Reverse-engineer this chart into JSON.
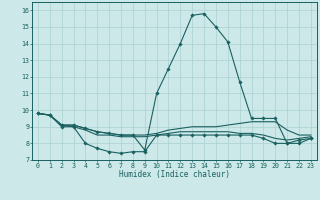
{
  "xlabel": "Humidex (Indice chaleur)",
  "xlim": [
    -0.5,
    23.5
  ],
  "ylim": [
    7,
    16.5
  ],
  "yticks": [
    7,
    8,
    9,
    10,
    11,
    12,
    13,
    14,
    15,
    16
  ],
  "xticks": [
    0,
    1,
    2,
    3,
    4,
    5,
    6,
    7,
    8,
    9,
    10,
    11,
    12,
    13,
    14,
    15,
    16,
    17,
    18,
    19,
    20,
    21,
    22,
    23
  ],
  "bg_color": "#cce8e8",
  "line_color": "#1a6060",
  "grid_color": "#aad0d0",
  "series": [
    {
      "x": [
        0,
        1,
        2,
        3,
        4,
        5,
        6,
        7,
        8,
        9,
        10,
        11,
        12,
        13,
        14,
        15,
        16,
        17,
        18,
        19,
        20,
        21,
        22,
        23
      ],
      "y": [
        9.8,
        9.7,
        9.0,
        9.0,
        8.0,
        7.7,
        7.5,
        7.4,
        7.5,
        7.5,
        8.5,
        8.5,
        8.5,
        8.5,
        8.5,
        8.5,
        8.5,
        8.5,
        8.5,
        8.3,
        8.0,
        8.0,
        8.2,
        8.3
      ],
      "marker": true
    },
    {
      "x": [
        0,
        1,
        2,
        3,
        4,
        5,
        6,
        7,
        8,
        9,
        10,
        11,
        12,
        13,
        14,
        15,
        16,
        17,
        18,
        19,
        20,
        21,
        22,
        23
      ],
      "y": [
        9.8,
        9.7,
        9.1,
        9.0,
        8.8,
        8.5,
        8.5,
        8.4,
        8.4,
        8.4,
        8.5,
        8.6,
        8.7,
        8.7,
        8.7,
        8.7,
        8.7,
        8.6,
        8.6,
        8.5,
        8.3,
        8.2,
        8.3,
        8.4
      ],
      "marker": false
    },
    {
      "x": [
        0,
        1,
        2,
        3,
        4,
        5,
        6,
        7,
        8,
        9,
        10,
        11,
        12,
        13,
        14,
        15,
        16,
        17,
        18,
        19,
        20,
        21,
        22,
        23
      ],
      "y": [
        9.8,
        9.7,
        9.1,
        9.1,
        8.9,
        8.7,
        8.6,
        8.5,
        8.5,
        8.5,
        8.6,
        8.8,
        8.9,
        9.0,
        9.0,
        9.0,
        9.1,
        9.2,
        9.3,
        9.3,
        9.3,
        8.8,
        8.5,
        8.5
      ],
      "marker": false
    },
    {
      "x": [
        0,
        1,
        2,
        3,
        4,
        5,
        6,
        7,
        8,
        9,
        10,
        11,
        12,
        13,
        14,
        15,
        16,
        17,
        18,
        19,
        20,
        21,
        22,
        23
      ],
      "y": [
        9.8,
        9.7,
        9.1,
        9.1,
        8.9,
        8.7,
        8.6,
        8.5,
        8.5,
        7.6,
        11.0,
        12.5,
        14.0,
        15.7,
        15.8,
        15.0,
        14.1,
        11.7,
        9.5,
        9.5,
        9.5,
        8.0,
        8.0,
        8.3
      ],
      "marker": true
    }
  ]
}
